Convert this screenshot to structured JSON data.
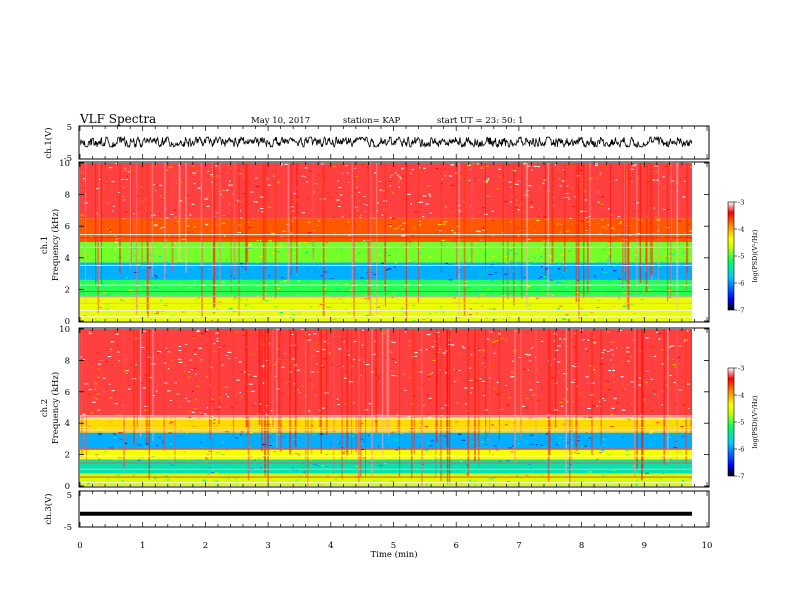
{
  "header": {
    "title": "VLF Spectra",
    "date": "May 10, 2017",
    "station": "station= KAP",
    "start": "start  UT =   23: 50: 1"
  },
  "colors": {
    "colormap": [
      "#000000",
      "#0000ff",
      "#00c8ff",
      "#00ff64",
      "#c8ff00",
      "#ffff00",
      "#ff8c00",
      "#ff0000",
      "#ffffff"
    ],
    "trace": "#000000"
  },
  "chart_data": [
    {
      "type": "line",
      "title": "",
      "ylabel": "ch.1(V)",
      "ylim": [
        -5,
        5
      ],
      "yticks": [
        "5",
        "-5"
      ],
      "xlim": [
        0,
        10
      ],
      "series": [
        {
          "description": "noisy waveform fluctuating roughly between -1.5 and 1.5 V",
          "values": []
        }
      ]
    },
    {
      "type": "heatmap",
      "ylabel_top": "ch.1",
      "ylabel": "Frequency (kHz)",
      "ylim": [
        0,
        10
      ],
      "yticks": [
        "0",
        "2",
        "4",
        "6",
        "8",
        "10"
      ],
      "xlim": [
        0,
        10
      ],
      "colorbar": {
        "label": "log(PSD)(V²/Hz)",
        "range": [
          -7,
          -3
        ],
        "ticks": [
          "-3",
          "-4",
          "-5",
          "-6",
          "-7"
        ]
      },
      "bands": [
        {
          "from_khz": 0.0,
          "to_khz": 1.5,
          "level": -4.5
        },
        {
          "from_khz": 1.5,
          "to_khz": 2.6,
          "level": -5.1
        },
        {
          "from_khz": 2.6,
          "to_khz": 3.7,
          "level": -5.9
        },
        {
          "from_khz": 3.7,
          "to_khz": 5.0,
          "level": -4.9
        },
        {
          "from_khz": 5.0,
          "to_khz": 6.5,
          "level": -3.7
        },
        {
          "from_khz": 6.5,
          "to_khz": 10.0,
          "level": -3.3
        }
      ]
    },
    {
      "type": "heatmap",
      "ylabel_top": "ch.2",
      "ylabel": "Frequency (kHz)",
      "ylim": [
        0,
        10
      ],
      "yticks": [
        "0",
        "2",
        "4",
        "6",
        "8",
        "10"
      ],
      "xlim": [
        0,
        10
      ],
      "colorbar": {
        "label": "log(PSD)(V²/Hz)",
        "range": [
          -7,
          -3
        ],
        "ticks": [
          "-3",
          "-4",
          "-5",
          "-6",
          "-7"
        ]
      },
      "bands": [
        {
          "from_khz": 0.0,
          "to_khz": 0.8,
          "level": -4.6
        },
        {
          "from_khz": 0.8,
          "to_khz": 1.7,
          "level": -5.5
        },
        {
          "from_khz": 1.7,
          "to_khz": 2.3,
          "level": -4.4
        },
        {
          "from_khz": 2.3,
          "to_khz": 3.4,
          "level": -5.9
        },
        {
          "from_khz": 3.4,
          "to_khz": 4.4,
          "level": -4.2
        },
        {
          "from_khz": 4.4,
          "to_khz": 10.0,
          "level": -3.3
        }
      ]
    },
    {
      "type": "line",
      "title": "",
      "ylabel": "ch.3(V)",
      "ylim": [
        -5,
        5
      ],
      "yticks": [
        "5",
        "-5"
      ],
      "xlim": [
        0,
        10
      ],
      "xlabel": "Time (min)",
      "xticks": [
        "0",
        "1",
        "2",
        "3",
        "4",
        "5",
        "6",
        "7",
        "8",
        "9",
        "10"
      ],
      "series": [
        {
          "description": "flat thick line",
          "constant_value": -1.5
        }
      ]
    }
  ]
}
